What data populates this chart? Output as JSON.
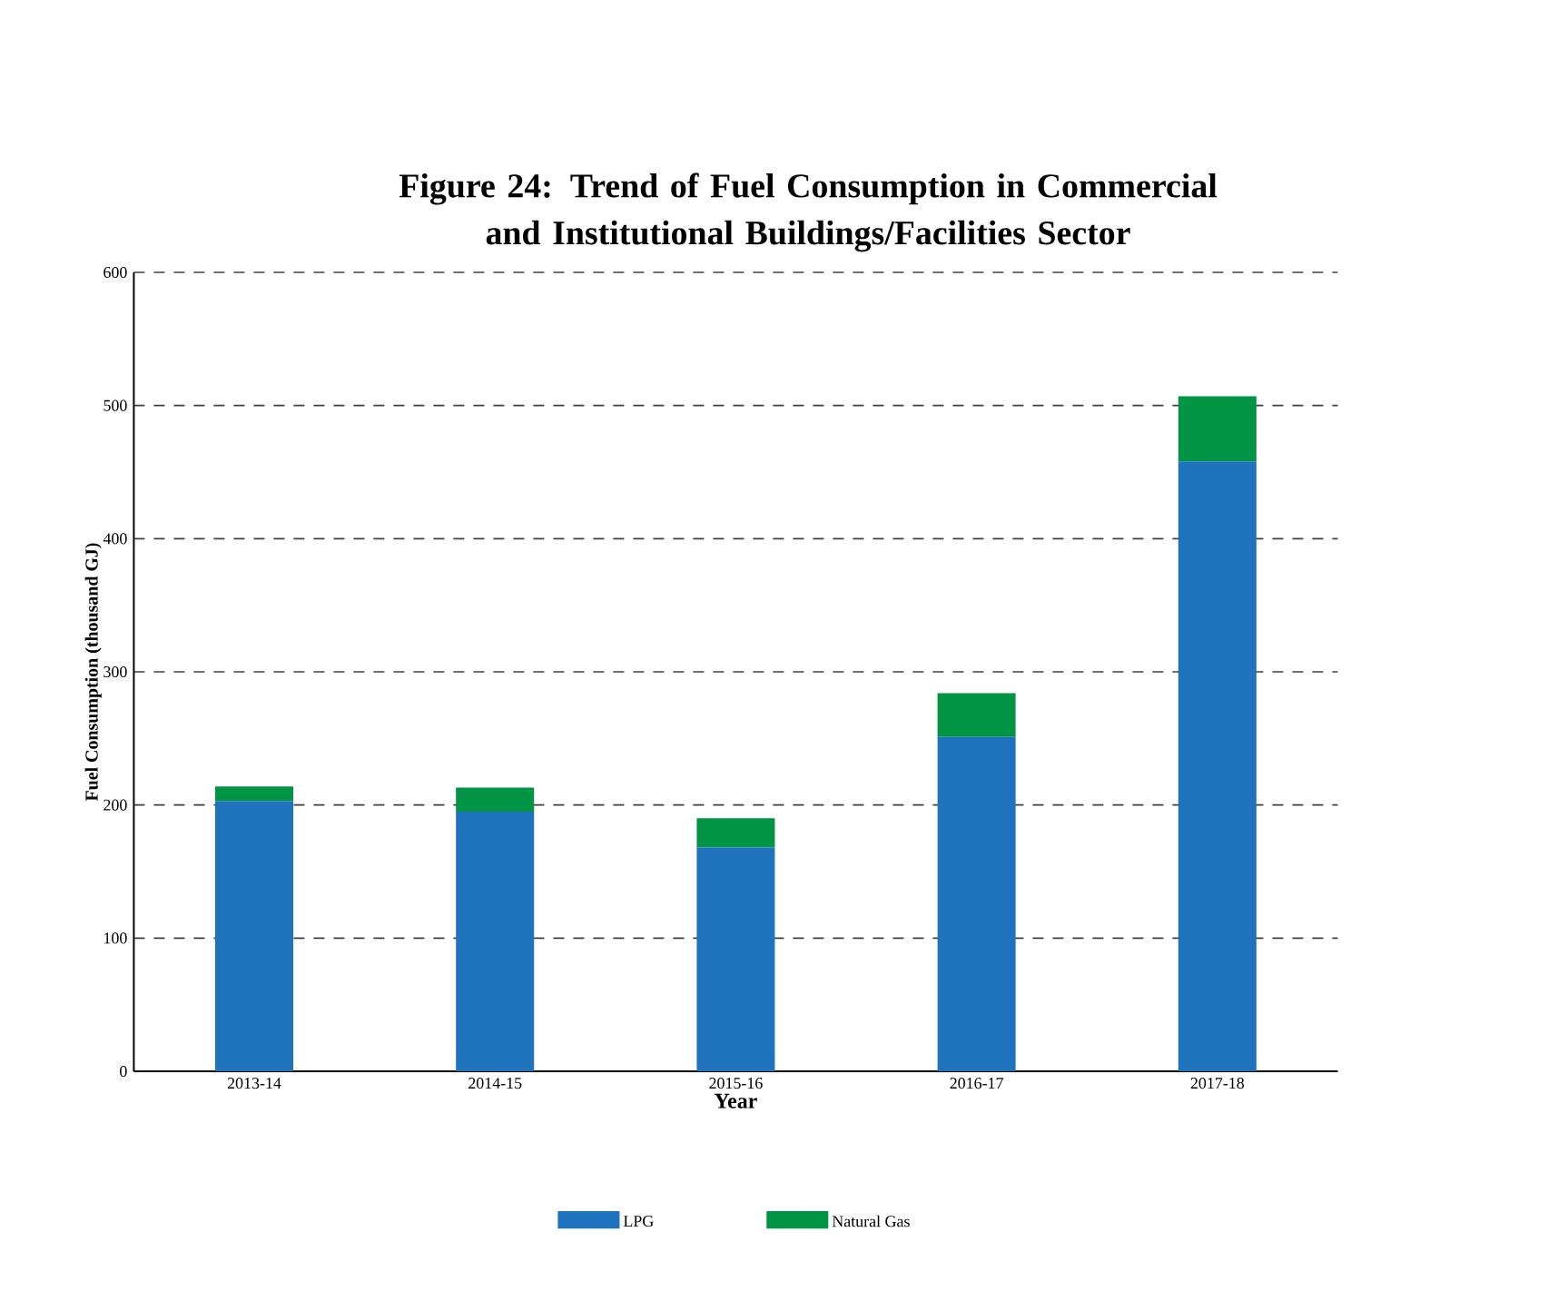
{
  "chart_data": {
    "type": "bar",
    "stacked": true,
    "title": "Figure 24: Trend of Fuel Consumption in Commercial and Institutional Buildings/Facilities Sector",
    "xlabel": "Year",
    "ylabel": "Fuel Consumption (thousand GJ)",
    "categories": [
      "2013-14",
      "2014-15",
      "2015-16",
      "2016-17",
      "2017-18"
    ],
    "series": [
      {
        "name": "LPG",
        "color": "#1f73bc",
        "values": [
          203,
          195,
          168,
          251,
          458
        ]
      },
      {
        "name": "Natural Gas",
        "color": "#009444",
        "values": [
          11,
          18,
          22,
          33,
          49
        ]
      }
    ],
    "ylim": [
      0,
      600
    ],
    "yticks": [
      0,
      100,
      200,
      300,
      400,
      500,
      600
    ],
    "grid": "y",
    "legend": "bottom"
  }
}
